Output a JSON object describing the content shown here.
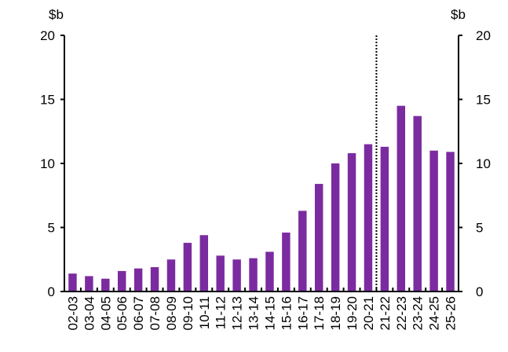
{
  "chart_data": {
    "type": "bar",
    "title": "",
    "xlabel": "",
    "ylabel_left": "$b",
    "ylabel_right": "$b",
    "ylim": [
      0,
      20
    ],
    "yticks": [
      0,
      5,
      10,
      15,
      20
    ],
    "grid": false,
    "bar_color": "#7B2BA0",
    "categories": [
      "02-03",
      "03-04",
      "04-05",
      "05-06",
      "06-07",
      "07-08",
      "08-09",
      "09-10",
      "10-11",
      "11-12",
      "12-13",
      "13-14",
      "14-15",
      "15-16",
      "16-17",
      "17-18",
      "18-19",
      "19-20",
      "20-21",
      "21-22",
      "22-23",
      "23-24",
      "24-25",
      "25-26"
    ],
    "values": [
      1.4,
      1.2,
      1.0,
      1.6,
      1.8,
      1.9,
      2.5,
      3.8,
      4.4,
      2.8,
      2.5,
      2.6,
      3.1,
      4.6,
      6.3,
      8.4,
      10.0,
      10.8,
      11.5,
      11.3,
      14.5,
      13.7,
      11.0,
      10.9
    ],
    "divider_after_category": "20-21",
    "divider_style": "dotted"
  }
}
